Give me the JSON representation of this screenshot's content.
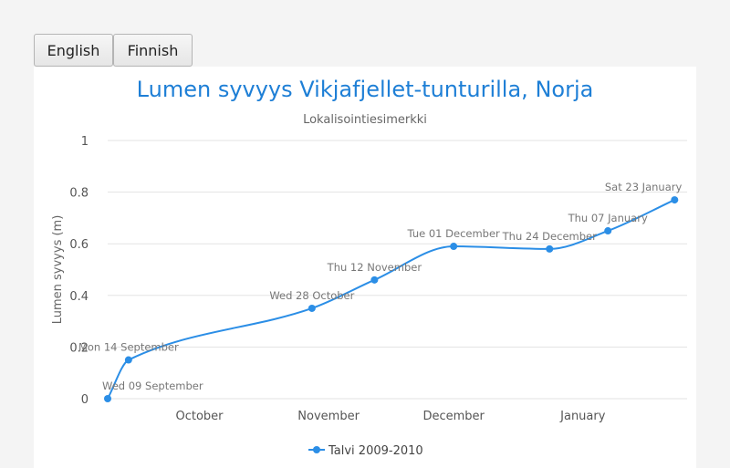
{
  "lang_buttons": {
    "english": "English",
    "finnish": "Finnish"
  },
  "colors": {
    "series": "#2b8ee6",
    "title": "#1e7fd6",
    "grid": "#e3e3e3"
  },
  "chart_data": {
    "type": "line",
    "title": "Lumen syvyys Vikjafjellet-tunturilla, Norja",
    "subtitle": "Lokalisointiesimerkki",
    "xlabel": "",
    "ylabel": "Lumen syvyys (m)",
    "ylim": [
      0,
      1
    ],
    "yticks": [
      "0",
      "0.2",
      "0.4",
      "0.6",
      "0.8",
      "1"
    ],
    "xlim": [
      "2009-09-09",
      "2010-01-26"
    ],
    "xticks": [
      {
        "date": "2009-10-01",
        "label": "October"
      },
      {
        "date": "2009-11-01",
        "label": "November"
      },
      {
        "date": "2009-12-01",
        "label": "December"
      },
      {
        "date": "2010-01-01",
        "label": "January"
      }
    ],
    "grid": true,
    "legend_position": "bottom-center",
    "series": [
      {
        "name": "Talvi 2009-2010",
        "points": [
          {
            "x": "2009-09-09",
            "y": 0,
            "label": "Wed 09 September"
          },
          {
            "x": "2009-09-14",
            "y": 0.15,
            "label": "Mon 14 September"
          },
          {
            "x": "2009-10-28",
            "y": 0.35,
            "label": "Wed 28 October"
          },
          {
            "x": "2009-11-12",
            "y": 0.46,
            "label": "Thu 12 November"
          },
          {
            "x": "2009-12-01",
            "y": 0.59,
            "label": "Tue 01 December"
          },
          {
            "x": "2009-12-24",
            "y": 0.58,
            "label": "Thu 24 December"
          },
          {
            "x": "2010-01-07",
            "y": 0.65,
            "label": "Thu 07 January"
          },
          {
            "x": "2010-01-23",
            "y": 0.77,
            "label": "Sat 23 January"
          }
        ]
      }
    ]
  }
}
